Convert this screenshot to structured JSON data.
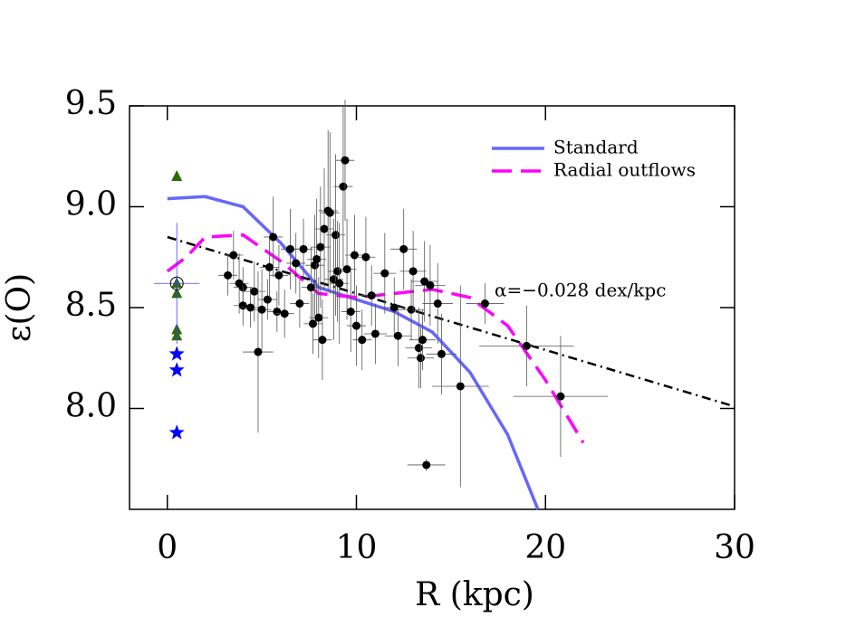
{
  "chart_data": {
    "type": "scatter",
    "xlabel": "R (kpc)",
    "ylabel": "ε(O)",
    "xlim": [
      -2,
      30
    ],
    "ylim": [
      7.5,
      9.5
    ],
    "xticks": [
      0,
      10,
      20,
      30
    ],
    "yticks": [
      {
        "value": 8,
        "label": "8.0"
      },
      {
        "value": 8.5,
        "label": "8.5"
      },
      {
        "value": 9,
        "label": "9.0"
      },
      {
        "value": 9.5,
        "label": "9.5"
      }
    ],
    "annotation": "α=−0.028 dex/kpc",
    "legend": "upper right",
    "series": [
      {
        "name": "Standard",
        "color": "#6666ff",
        "style": "solid",
        "x": [
          0,
          2,
          4,
          6,
          8,
          10,
          12,
          14,
          16,
          18,
          19.6
        ],
        "values": [
          9.04,
          9.05,
          9.0,
          8.82,
          8.6,
          8.54,
          8.48,
          8.38,
          8.18,
          7.87,
          7.5
        ]
      },
      {
        "name": "Radial outflows",
        "color": "#ff00ff",
        "style": "dashed",
        "x": [
          0,
          1,
          2,
          4,
          6,
          8,
          10,
          12,
          14,
          16,
          18,
          20,
          22
        ],
        "values": [
          8.68,
          8.75,
          8.85,
          8.86,
          8.73,
          8.57,
          8.55,
          8.57,
          8.59,
          8.55,
          8.41,
          8.14,
          7.83
        ]
      },
      {
        "color": "#000000",
        "style": "dashdot",
        "x": [
          0,
          30
        ],
        "values": [
          8.85,
          8.01
        ]
      },
      {
        "color": "#000000",
        "marker": "circle",
        "x": [
          3.2,
          3.5,
          3.8,
          4.0,
          4.0,
          4.4,
          4.6,
          4.8,
          5.0,
          5.3,
          5.4,
          5.6,
          5.8,
          5.9,
          6.2,
          6.5,
          6.8,
          7.0,
          7.2,
          7.6,
          7.7,
          7.8,
          7.9,
          8.0,
          8.1,
          8.2,
          8.3,
          8.5,
          8.6,
          8.8,
          8.9,
          9.0,
          9.1,
          9.3,
          9.4,
          9.5,
          9.7,
          9.9,
          10.0,
          10.3,
          10.5,
          10.8,
          11.0,
          11.5,
          12.0,
          12.2,
          12.5,
          12.9,
          13.0,
          13.3,
          13.4,
          13.5,
          13.6,
          13.9,
          14.3,
          14.5,
          13.7,
          15.5,
          16.8,
          19.0,
          20.8
        ],
        "values": [
          8.66,
          8.76,
          8.62,
          8.6,
          8.51,
          8.5,
          8.58,
          8.28,
          8.49,
          8.54,
          8.7,
          8.85,
          8.48,
          8.66,
          8.47,
          8.79,
          8.72,
          8.52,
          8.79,
          8.6,
          8.42,
          8.71,
          8.74,
          8.45,
          8.8,
          8.34,
          8.89,
          8.98,
          8.97,
          8.64,
          8.86,
          8.68,
          8.62,
          9.1,
          9.23,
          8.69,
          8.48,
          8.76,
          8.41,
          8.34,
          8.75,
          8.56,
          8.37,
          8.67,
          8.5,
          8.36,
          8.79,
          8.49,
          8.68,
          8.3,
          8.25,
          8.34,
          8.63,
          8.61,
          8.52,
          8.27,
          7.72,
          8.11,
          8.52,
          8.31,
          8.06
        ],
        "xerr": [
          0.5,
          0.5,
          0.5,
          0.5,
          0.5,
          0.5,
          0.6,
          0.8,
          0.5,
          0.5,
          0.5,
          0.5,
          0.5,
          0.5,
          0.5,
          0.5,
          0.5,
          0.5,
          0.5,
          0.5,
          0.5,
          0.5,
          0.5,
          0.5,
          0.5,
          0.5,
          0.5,
          0.5,
          0.5,
          0.5,
          0.5,
          0.5,
          0.5,
          0.5,
          0.5,
          0.5,
          0.5,
          0.5,
          0.5,
          0.5,
          0.5,
          0.6,
          0.6,
          0.6,
          0.6,
          0.7,
          0.7,
          0.7,
          0.7,
          0.7,
          0.7,
          0.7,
          0.7,
          0.8,
          0.8,
          0.8,
          1.0,
          1.5,
          1.0,
          2.5,
          2.5
        ],
        "yerr": [
          0.1,
          0.12,
          0.15,
          0.1,
          0.1,
          0.1,
          0.15,
          0.4,
          0.2,
          0.1,
          0.15,
          0.2,
          0.1,
          0.15,
          0.12,
          0.2,
          0.15,
          0.12,
          0.15,
          0.2,
          0.15,
          0.25,
          0.3,
          0.2,
          0.3,
          0.2,
          0.3,
          0.4,
          0.4,
          0.3,
          0.4,
          0.25,
          0.3,
          0.4,
          0.3,
          0.25,
          0.2,
          0.2,
          0.2,
          0.15,
          0.2,
          0.15,
          0.15,
          0.2,
          0.15,
          0.15,
          0.2,
          0.15,
          0.2,
          0.2,
          0.15,
          0.15,
          0.2,
          0.2,
          0.2,
          0.2,
          0.03,
          0.5,
          0.1,
          0.2,
          0.3
        ]
      },
      {
        "color": "#2d6a0a",
        "marker": "triangle",
        "x": [
          0.5,
          0.5,
          0.5,
          0.5,
          0.5
        ],
        "values": [
          9.15,
          8.62,
          8.57,
          8.39,
          8.36
        ]
      },
      {
        "color": "#0000ff",
        "marker": "star",
        "x": [
          0.5,
          0.5,
          0.5
        ],
        "values": [
          8.27,
          8.19,
          7.88
        ]
      },
      {
        "color": "#4040ff",
        "marker": "circled",
        "x": [
          0.5
        ],
        "values": [
          8.62
        ],
        "xerr": [
          1.2
        ],
        "yerr": [
          0.3
        ]
      }
    ]
  }
}
